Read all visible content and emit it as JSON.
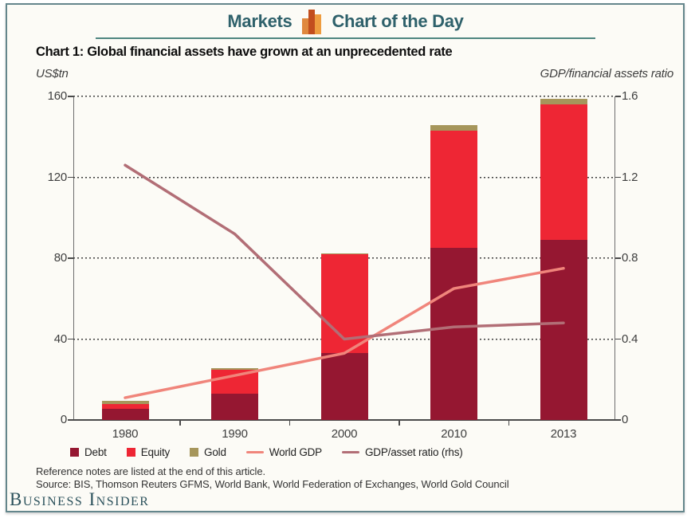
{
  "header": {
    "section": "Markets",
    "title": "Chart of the Day"
  },
  "header_icon_colors": [
    "#E0883E",
    "#C24E1E",
    "#EE9C3F"
  ],
  "chart_title": "Chart 1: Global financial assets have grown at an unprecedented rate",
  "axis_units": {
    "left": "US$tn",
    "right": "GDP/financial assets ratio"
  },
  "chart_data": {
    "type": "bar",
    "subtype": "stacked-bar-with-line-overlay",
    "title": "Chart 1: Global financial assets have grown at an unprecedented rate",
    "categories": [
      "1980",
      "1990",
      "2000",
      "2010",
      "2013"
    ],
    "bar_series": [
      {
        "name": "Debt",
        "color": "#951731",
        "values": [
          5.5,
          13,
          33,
          85,
          89
        ]
      },
      {
        "name": "Equity",
        "color": "#EE2634",
        "values": [
          2.5,
          12,
          49,
          58,
          67
        ]
      },
      {
        "name": "Gold",
        "color": "#A6965B",
        "values": [
          1.5,
          0.5,
          0.5,
          3,
          3
        ]
      }
    ],
    "line_series": [
      {
        "name": "World GDP",
        "axis": "left",
        "color": "#F0857B",
        "values": [
          11,
          22,
          33,
          65,
          75
        ]
      },
      {
        "name": "GDP/asset ratio (rhs)",
        "axis": "right",
        "color": "#B26E76",
        "values": [
          1.26,
          0.92,
          0.4,
          0.46,
          0.48
        ]
      }
    ],
    "left_axis": {
      "label": "US$tn",
      "ticks": [
        0,
        40,
        80,
        120,
        160
      ],
      "max": 160
    },
    "right_axis": {
      "label": "GDP/financial assets ratio",
      "ticks": [
        0,
        0.4,
        0.8,
        1.2,
        1.6
      ],
      "max": 1.6
    },
    "grid": "horizontal dotted",
    "legend_position": "bottom"
  },
  "footer": {
    "note": "Reference notes are listed at the end of this article.",
    "source": "Source: BIS, Thomson Reuters GFMS, World Bank, World Federation of Exchanges, World Gold Council"
  },
  "branding": {
    "logo": "Business Insider"
  },
  "colors": {
    "frame": "#64868C",
    "header_text": "#2F616B",
    "underline": "#4F8680",
    "logo": "#2C525C",
    "axis_text": "#3E3E3E",
    "grid": "#3F3F3F"
  }
}
